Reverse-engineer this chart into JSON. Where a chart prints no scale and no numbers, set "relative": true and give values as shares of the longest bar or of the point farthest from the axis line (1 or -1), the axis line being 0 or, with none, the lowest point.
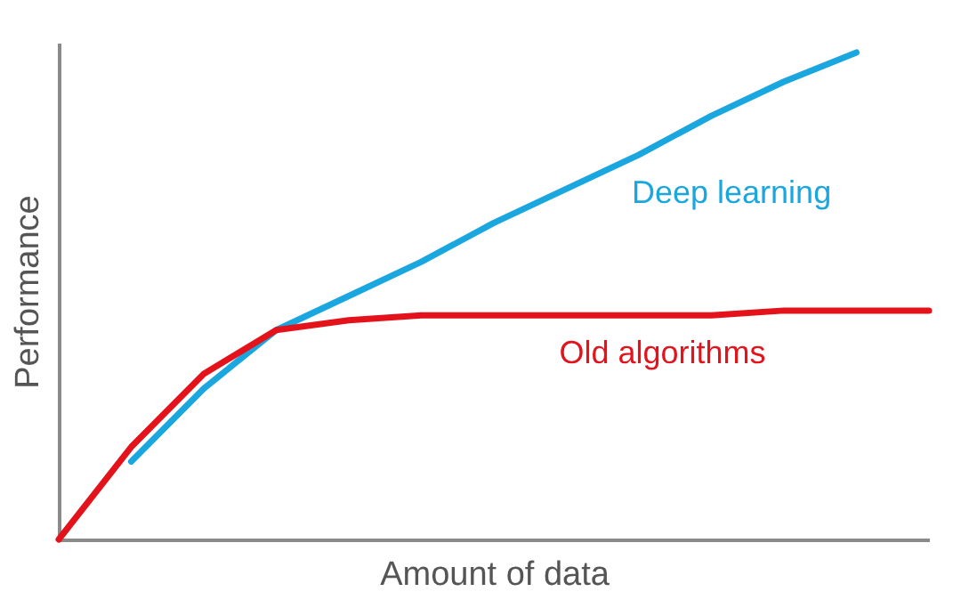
{
  "chart_data": {
    "type": "line",
    "xlabel": "Amount of data",
    "ylabel": "Performance",
    "relative": true,
    "categories": [
      null,
      null,
      null,
      null,
      null,
      null,
      null,
      null,
      null,
      null,
      null,
      null,
      null
    ],
    "series": [
      {
        "name": "Deep learning",
        "color": "#1aa6de",
        "values": [
          null,
          0.16,
          0.31,
          0.43,
          0.5,
          0.57,
          0.65,
          0.72,
          0.79,
          0.87,
          0.94,
          1.0,
          null
        ]
      },
      {
        "name": "Old algorithms",
        "color": "#e3121b",
        "values": [
          0,
          0.19,
          0.34,
          0.43,
          0.45,
          0.46,
          0.46,
          0.46,
          0.46,
          0.46,
          0.47,
          0.47,
          0.47
        ]
      }
    ],
    "legend": false,
    "grid": false,
    "marker": "none",
    "line_style": "solid"
  }
}
